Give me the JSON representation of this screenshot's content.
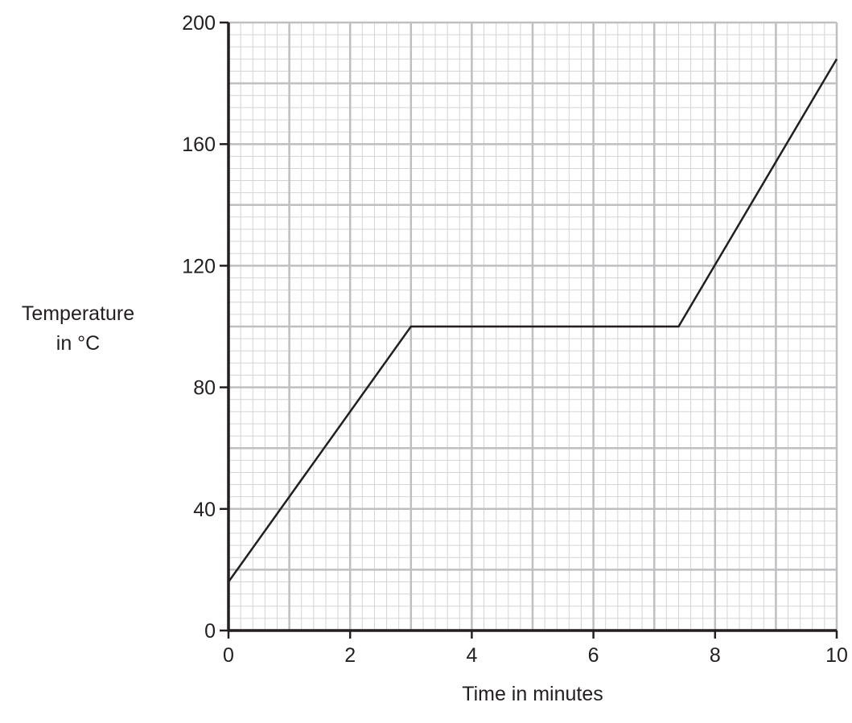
{
  "chart_data": {
    "type": "line",
    "xlabel": "Time in minutes",
    "ylabel_line1": "Temperature",
    "ylabel_line2": "in °C",
    "xlim": [
      0,
      10
    ],
    "ylim": [
      0,
      200
    ],
    "x_ticks": [
      "0",
      "2",
      "4",
      "6",
      "8",
      "10"
    ],
    "y_ticks": [
      "0",
      "40",
      "80",
      "120",
      "160",
      "200"
    ],
    "grid": true,
    "series": [
      {
        "x": [
          0,
          3,
          7.4,
          10
        ],
        "y": [
          16,
          100,
          100,
          188
        ]
      }
    ]
  },
  "colors": {
    "grid_major": "#bfbfc2",
    "grid_minor": "#d4d4d7",
    "axis": "#231f20",
    "line": "#231f20"
  }
}
